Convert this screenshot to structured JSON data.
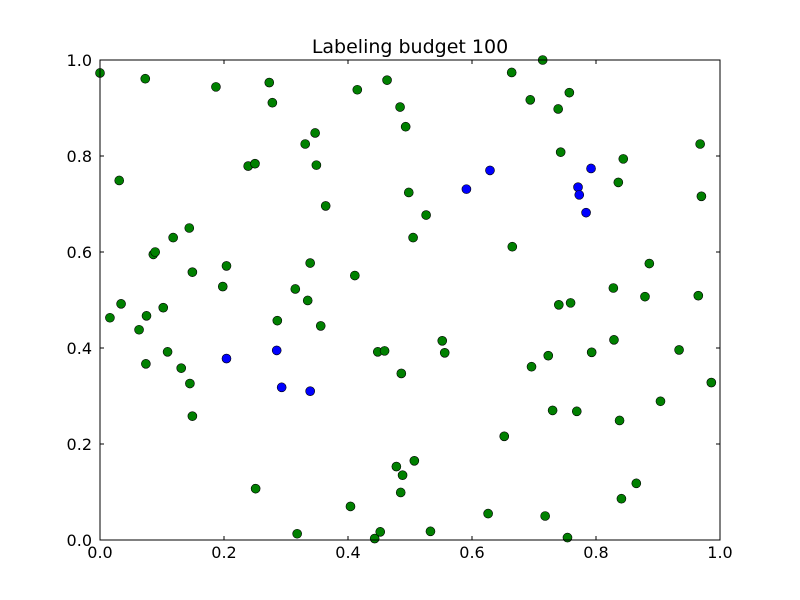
{
  "chart_data": {
    "type": "scatter",
    "title": "Labeling budget 100",
    "xlabel": "",
    "ylabel": "",
    "xlim": [
      0.0,
      1.0
    ],
    "ylim": [
      0.0,
      1.0
    ],
    "xticks": [
      "0.0",
      "0.2",
      "0.4",
      "0.6",
      "0.8",
      "1.0"
    ],
    "yticks": [
      "0.0",
      "0.2",
      "0.4",
      "0.6",
      "0.8",
      "1.0"
    ],
    "grid": false,
    "legend": "none",
    "series": [
      {
        "color": "#008000",
        "points": [
          [
            0.0,
            0.973
          ],
          [
            0.073,
            0.961
          ],
          [
            0.031,
            0.749
          ],
          [
            0.016,
            0.463
          ],
          [
            0.034,
            0.492
          ],
          [
            0.063,
            0.438
          ],
          [
            0.075,
            0.467
          ],
          [
            0.074,
            0.367
          ],
          [
            0.086,
            0.595
          ],
          [
            0.089,
            0.6
          ],
          [
            0.102,
            0.484
          ],
          [
            0.109,
            0.392
          ],
          [
            0.118,
            0.63
          ],
          [
            0.131,
            0.358
          ],
          [
            0.144,
            0.65
          ],
          [
            0.145,
            0.326
          ],
          [
            0.149,
            0.558
          ],
          [
            0.149,
            0.258
          ],
          [
            0.187,
            0.944
          ],
          [
            0.198,
            0.528
          ],
          [
            0.204,
            0.571
          ],
          [
            0.239,
            0.779
          ],
          [
            0.25,
            0.784
          ],
          [
            0.251,
            0.107
          ],
          [
            0.273,
            0.953
          ],
          [
            0.278,
            0.911
          ],
          [
            0.286,
            0.457
          ],
          [
            0.315,
            0.523
          ],
          [
            0.318,
            0.013
          ],
          [
            0.331,
            0.825
          ],
          [
            0.335,
            0.499
          ],
          [
            0.339,
            0.577
          ],
          [
            0.347,
            0.848
          ],
          [
            0.349,
            0.781
          ],
          [
            0.356,
            0.446
          ],
          [
            0.364,
            0.696
          ],
          [
            0.404,
            0.07
          ],
          [
            0.411,
            0.551
          ],
          [
            0.415,
            0.938
          ],
          [
            0.443,
            0.003
          ],
          [
            0.448,
            0.392
          ],
          [
            0.452,
            0.017
          ],
          [
            0.459,
            0.394
          ],
          [
            0.463,
            0.958
          ],
          [
            0.478,
            0.153
          ],
          [
            0.484,
            0.902
          ],
          [
            0.485,
            0.099
          ],
          [
            0.486,
            0.347
          ],
          [
            0.488,
            0.135
          ],
          [
            0.493,
            0.861
          ],
          [
            0.498,
            0.724
          ],
          [
            0.505,
            0.63
          ],
          [
            0.507,
            0.165
          ],
          [
            0.526,
            0.677
          ],
          [
            0.533,
            0.018
          ],
          [
            0.552,
            0.415
          ],
          [
            0.556,
            0.39
          ],
          [
            0.626,
            0.055
          ],
          [
            0.652,
            0.216
          ],
          [
            0.664,
            0.974
          ],
          [
            0.665,
            0.611
          ],
          [
            0.694,
            0.917
          ],
          [
            0.696,
            0.361
          ],
          [
            0.714,
            1.0
          ],
          [
            0.718,
            0.05
          ],
          [
            0.723,
            0.384
          ],
          [
            0.73,
            0.27
          ],
          [
            0.739,
            0.898
          ],
          [
            0.74,
            0.49
          ],
          [
            0.743,
            0.808
          ],
          [
            0.754,
            0.005
          ],
          [
            0.757,
            0.932
          ],
          [
            0.759,
            0.494
          ],
          [
            0.769,
            0.268
          ],
          [
            0.793,
            0.391
          ],
          [
            0.828,
            0.525
          ],
          [
            0.829,
            0.417
          ],
          [
            0.836,
            0.745
          ],
          [
            0.838,
            0.249
          ],
          [
            0.841,
            0.086
          ],
          [
            0.844,
            0.794
          ],
          [
            0.865,
            0.118
          ],
          [
            0.879,
            0.507
          ],
          [
            0.886,
            0.576
          ],
          [
            0.904,
            0.289
          ],
          [
            0.934,
            0.396
          ],
          [
            0.965,
            0.509
          ],
          [
            0.968,
            0.825
          ],
          [
            0.97,
            0.716
          ],
          [
            0.986,
            0.328
          ]
        ]
      },
      {
        "color": "#0000ff",
        "points": [
          [
            0.204,
            0.378
          ],
          [
            0.285,
            0.395
          ],
          [
            0.293,
            0.318
          ],
          [
            0.339,
            0.31
          ],
          [
            0.591,
            0.731
          ],
          [
            0.629,
            0.77
          ],
          [
            0.771,
            0.735
          ],
          [
            0.773,
            0.719
          ],
          [
            0.784,
            0.682
          ],
          [
            0.792,
            0.774
          ]
        ]
      }
    ]
  }
}
